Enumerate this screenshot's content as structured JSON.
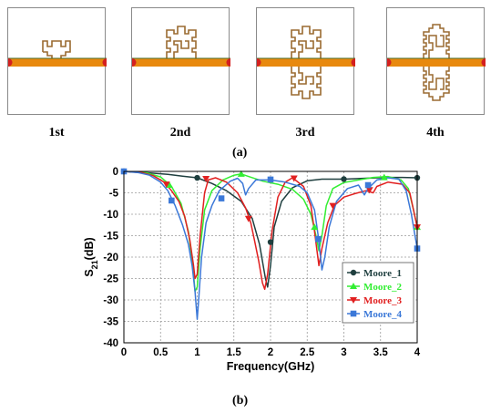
{
  "panel_labels": [
    "1st",
    "2nd",
    "3rd",
    "4th"
  ],
  "caption_a": "(a)",
  "caption_b": "(b)",
  "chart_data": {
    "type": "line",
    "xlabel": "Frequency(GHz)",
    "ylabel_main": "S",
    "ylabel_sub": "21",
    "ylabel_unit": "(dB)",
    "xlim": [
      0,
      4
    ],
    "ylim": [
      -40,
      0
    ],
    "xticks": [
      0,
      0.5,
      1,
      1.5,
      2,
      2.5,
      3,
      3.5,
      4
    ],
    "xtick_labels": [
      "0",
      "0.5",
      "1",
      "1.5",
      "2",
      "2.5",
      "3",
      "3.5",
      "4"
    ],
    "yticks": [
      0,
      -5,
      -10,
      -15,
      -20,
      -25,
      -30,
      -35,
      -40
    ],
    "ytick_labels": [
      "0",
      "-5",
      "-10",
      "-15",
      "-20",
      "-25",
      "-30",
      "-35",
      "-40"
    ],
    "grid": true,
    "legend_position": "right",
    "series": [
      {
        "name": "Moore_1",
        "color": "#1f3f3f",
        "marker": "circle",
        "points": [
          [
            0,
            0
          ],
          [
            0.3,
            -0.3
          ],
          [
            0.6,
            -0.7
          ],
          [
            0.8,
            -1.1
          ],
          [
            1.0,
            -1.5
          ],
          [
            1.2,
            -2.8
          ],
          [
            1.4,
            -4.5
          ],
          [
            1.6,
            -7
          ],
          [
            1.75,
            -11
          ],
          [
            1.85,
            -17
          ],
          [
            1.93,
            -25
          ],
          [
            1.96,
            -27
          ],
          [
            2.0,
            -22
          ],
          [
            2.05,
            -13
          ],
          [
            2.15,
            -7
          ],
          [
            2.3,
            -3.8
          ],
          [
            2.5,
            -2.2
          ],
          [
            2.7,
            -1.8
          ],
          [
            3.0,
            -1.8
          ],
          [
            3.3,
            -1.6
          ],
          [
            3.6,
            -1.4
          ],
          [
            3.8,
            -1.4
          ],
          [
            4.0,
            -1.5
          ]
        ],
        "markers": [
          [
            0,
            0
          ],
          [
            1.0,
            -1.5
          ],
          [
            2.0,
            -16.5
          ],
          [
            3.0,
            -1.8
          ],
          [
            4.0,
            -1.5
          ]
        ]
      },
      {
        "name": "Moore_2",
        "color": "#33ee33",
        "marker": "triangle",
        "points": [
          [
            0,
            0
          ],
          [
            0.3,
            -0.3
          ],
          [
            0.5,
            -1.3
          ],
          [
            0.65,
            -3.5
          ],
          [
            0.78,
            -7.5
          ],
          [
            0.88,
            -14
          ],
          [
            0.94,
            -22
          ],
          [
            0.97,
            -28
          ],
          [
            1.0,
            -27
          ],
          [
            1.04,
            -18
          ],
          [
            1.1,
            -9
          ],
          [
            1.2,
            -4.5
          ],
          [
            1.35,
            -2
          ],
          [
            1.5,
            -0.9
          ],
          [
            1.6,
            -0.6
          ],
          [
            1.7,
            -1.2
          ],
          [
            1.9,
            -2.3
          ],
          [
            2.1,
            -3
          ],
          [
            2.3,
            -4.2
          ],
          [
            2.45,
            -6.5
          ],
          [
            2.55,
            -10
          ],
          [
            2.62,
            -15
          ],
          [
            2.66,
            -18.5
          ],
          [
            2.7,
            -15
          ],
          [
            2.76,
            -8
          ],
          [
            2.85,
            -4
          ],
          [
            3.0,
            -2.6
          ],
          [
            3.2,
            -2
          ],
          [
            3.4,
            -1.4
          ],
          [
            3.6,
            -1.2
          ],
          [
            3.78,
            -2
          ],
          [
            3.88,
            -4
          ],
          [
            3.95,
            -9
          ],
          [
            4.0,
            -13
          ]
        ],
        "markers": [
          [
            0.62,
            -3.2
          ],
          [
            1.6,
            -0.6
          ],
          [
            2.6,
            -13
          ],
          [
            3.55,
            -1.4
          ],
          [
            4.0,
            -13
          ]
        ]
      },
      {
        "name": "Moore_3",
        "color": "#e12020",
        "marker": "triangle-down",
        "points": [
          [
            0,
            0
          ],
          [
            0.25,
            -0.3
          ],
          [
            0.4,
            -1
          ],
          [
            0.55,
            -2.5
          ],
          [
            0.65,
            -4.5
          ],
          [
            0.75,
            -7
          ],
          [
            0.83,
            -10.5
          ],
          [
            0.9,
            -16
          ],
          [
            0.95,
            -22
          ],
          [
            0.97,
            -25
          ],
          [
            1.0,
            -24
          ],
          [
            1.04,
            -15
          ],
          [
            1.1,
            -5
          ],
          [
            1.15,
            -2
          ],
          [
            1.25,
            -1.5
          ],
          [
            1.4,
            -2.5
          ],
          [
            1.55,
            -5
          ],
          [
            1.66,
            -8.5
          ],
          [
            1.73,
            -12
          ],
          [
            1.78,
            -16
          ],
          [
            1.84,
            -21
          ],
          [
            1.89,
            -26
          ],
          [
            1.92,
            -27.5
          ],
          [
            1.96,
            -24
          ],
          [
            2.02,
            -14
          ],
          [
            2.1,
            -6
          ],
          [
            2.2,
            -2.5
          ],
          [
            2.3,
            -1.5
          ],
          [
            2.45,
            -3.5
          ],
          [
            2.55,
            -8
          ],
          [
            2.6,
            -14
          ],
          [
            2.63,
            -18
          ],
          [
            2.66,
            -22
          ],
          [
            2.7,
            -18
          ],
          [
            2.78,
            -12
          ],
          [
            2.87,
            -8
          ],
          [
            3.0,
            -6
          ],
          [
            3.15,
            -5.2
          ],
          [
            3.3,
            -4.5
          ],
          [
            3.4,
            -5
          ],
          [
            3.45,
            -3.5
          ],
          [
            3.6,
            -2.5
          ],
          [
            3.8,
            -3
          ],
          [
            3.9,
            -5
          ],
          [
            4.0,
            -13
          ]
        ],
        "markers": [
          [
            0.58,
            -3
          ],
          [
            1.12,
            -1.7
          ],
          [
            1.7,
            -11
          ],
          [
            2.32,
            -1.6
          ],
          [
            2.85,
            -8
          ],
          [
            3.35,
            -4.3
          ],
          [
            4.0,
            -13
          ]
        ]
      },
      {
        "name": "Moore_4",
        "color": "#3b78d8",
        "marker": "square",
        "points": [
          [
            0,
            0
          ],
          [
            0.2,
            -0.3
          ],
          [
            0.35,
            -0.9
          ],
          [
            0.5,
            -2.5
          ],
          [
            0.6,
            -4.5
          ],
          [
            0.7,
            -8
          ],
          [
            0.8,
            -12.5
          ],
          [
            0.88,
            -17
          ],
          [
            0.93,
            -22
          ],
          [
            0.97,
            -28
          ],
          [
            1.0,
            -34.5
          ],
          [
            1.02,
            -30
          ],
          [
            1.06,
            -20
          ],
          [
            1.12,
            -12
          ],
          [
            1.2,
            -8
          ],
          [
            1.3,
            -4.5
          ],
          [
            1.45,
            -2.3
          ],
          [
            1.55,
            -1.6
          ],
          [
            1.62,
            -2.8
          ],
          [
            1.66,
            -5.5
          ],
          [
            1.7,
            -4
          ],
          [
            1.8,
            -2
          ],
          [
            2.0,
            -2
          ],
          [
            2.2,
            -2.5
          ],
          [
            2.4,
            -3.5
          ],
          [
            2.5,
            -5
          ],
          [
            2.6,
            -9
          ],
          [
            2.65,
            -15
          ],
          [
            2.7,
            -23
          ],
          [
            2.74,
            -20
          ],
          [
            2.8,
            -13
          ],
          [
            2.9,
            -7
          ],
          [
            3.05,
            -4
          ],
          [
            3.2,
            -3.2
          ],
          [
            3.28,
            -5.5
          ],
          [
            3.33,
            -4
          ],
          [
            3.45,
            -2
          ],
          [
            3.6,
            -1.5
          ],
          [
            3.75,
            -1.8
          ],
          [
            3.85,
            -4.5
          ],
          [
            3.92,
            -10
          ],
          [
            3.97,
            -15
          ],
          [
            4.0,
            -18
          ]
        ],
        "markers": [
          [
            0,
            0
          ],
          [
            0.65,
            -6.8
          ],
          [
            1.33,
            -6.3
          ],
          [
            2.0,
            -1.9
          ],
          [
            2.65,
            -15.8
          ],
          [
            3.33,
            -3.2
          ],
          [
            4.0,
            -18
          ]
        ]
      }
    ]
  }
}
